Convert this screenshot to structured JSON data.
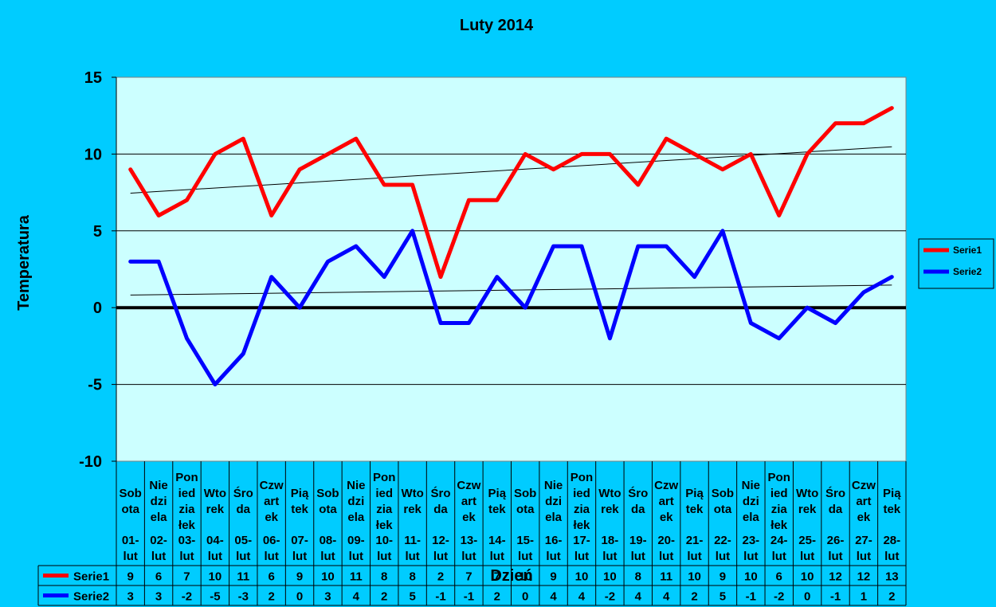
{
  "chart_data": {
    "type": "line",
    "title": "Luty 2014",
    "xlabel": "Dzień",
    "ylabel": "Temperatura",
    "ylim": [
      -10,
      15
    ],
    "yticks": [
      15,
      10,
      5,
      0,
      -5,
      -10
    ],
    "grid": true,
    "legend_position": "right",
    "trendlines": true,
    "categories": [
      {
        "day": "Sobota",
        "date": "01-lut"
      },
      {
        "day": "Niedziela",
        "date": "02-lut"
      },
      {
        "day": "Poniedziałek",
        "date": "03-lut"
      },
      {
        "day": "Wtorek",
        "date": "04-lut"
      },
      {
        "day": "Środa",
        "date": "05-lut"
      },
      {
        "day": "Czwartek",
        "date": "06-lut"
      },
      {
        "day": "Piątek",
        "date": "07-lut"
      },
      {
        "day": "Sobota",
        "date": "08-lut"
      },
      {
        "day": "Niedziela",
        "date": "09-lut"
      },
      {
        "day": "Poniedziałek",
        "date": "10-lut"
      },
      {
        "day": "Wtorek",
        "date": "11-lut"
      },
      {
        "day": "Środa",
        "date": "12-lut"
      },
      {
        "day": "Czwartek",
        "date": "13-lut"
      },
      {
        "day": "Piątek",
        "date": "14-lut"
      },
      {
        "day": "Sobota",
        "date": "15-lut"
      },
      {
        "day": "Niedziela",
        "date": "16-lut"
      },
      {
        "day": "Poniedziałek",
        "date": "17-lut"
      },
      {
        "day": "Wtorek",
        "date": "18-lut"
      },
      {
        "day": "Środa",
        "date": "19-lut"
      },
      {
        "day": "Czwartek",
        "date": "20-lut"
      },
      {
        "day": "Piątek",
        "date": "21-lut"
      },
      {
        "day": "Sobota",
        "date": "22-lut"
      },
      {
        "day": "Niedziela",
        "date": "23-lut"
      },
      {
        "day": "Poniedziałek",
        "date": "24-lut"
      },
      {
        "day": "Wtorek",
        "date": "25-lut"
      },
      {
        "day": "Środa",
        "date": "26-lut"
      },
      {
        "day": "Czwartek",
        "date": "27-lut"
      },
      {
        "day": "Piątek",
        "date": "28-lut"
      }
    ],
    "series": [
      {
        "name": "Serie1",
        "color": "#FF0000",
        "values": [
          9,
          6,
          7,
          10,
          11,
          6,
          9,
          10,
          11,
          8,
          8,
          2,
          7,
          7,
          10,
          9,
          10,
          10,
          8,
          11,
          10,
          9,
          10,
          6,
          10,
          12,
          12,
          13
        ]
      },
      {
        "name": "Serie2",
        "color": "#0000FF",
        "values": [
          3,
          3,
          -2,
          -5,
          -3,
          2,
          0,
          3,
          4,
          2,
          5,
          -1,
          -1,
          2,
          0,
          4,
          4,
          -2,
          4,
          4,
          2,
          5,
          -1,
          -2,
          0,
          -1,
          1,
          2
        ]
      }
    ],
    "colors": {
      "background": "#00CCFF",
      "plot_area": "#CCFFFF",
      "grid": "#000000"
    }
  }
}
